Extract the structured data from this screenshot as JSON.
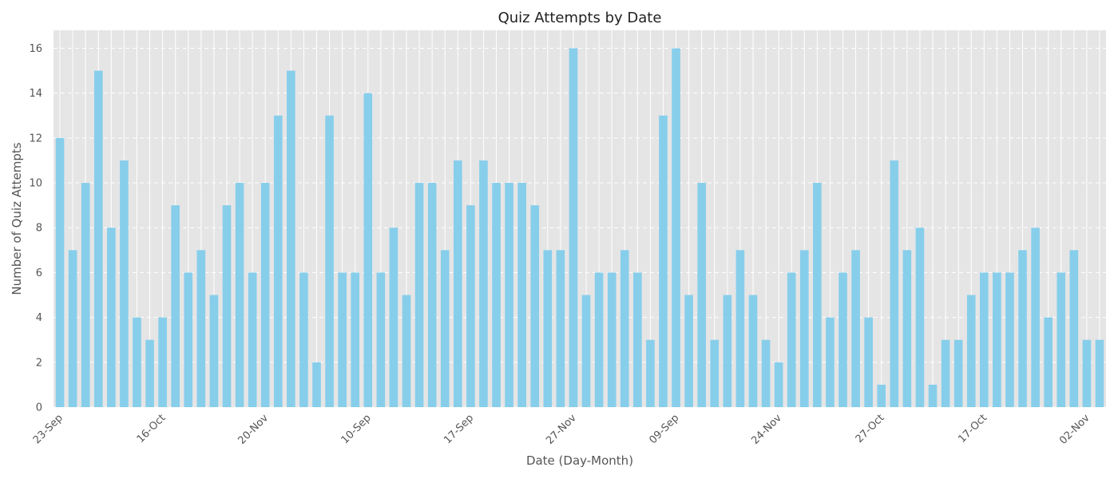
{
  "colors": {
    "plot_background": "#e5e5e5",
    "bar": "#87ceeb",
    "grid": "#ffffff",
    "text": "#555555"
  },
  "chart_data": {
    "type": "bar",
    "title": "Quiz Attempts by Date",
    "xlabel": "Date (Day-Month)",
    "ylabel": "Number of Quiz Attempts",
    "ylim": [
      0,
      16.8
    ],
    "yticks": [
      0,
      2,
      4,
      6,
      8,
      10,
      12,
      14,
      16
    ],
    "grid": true,
    "xtick_every": 8,
    "xtick_labels": [
      "23-Sep",
      "16-Oct",
      "20-Nov",
      "10-Sep",
      "17-Sep",
      "27-Nov",
      "09-Sep",
      "24-Nov",
      "27-Oct",
      "17-Oct",
      "02-Nov"
    ],
    "values": [
      12,
      7,
      10,
      15,
      8,
      11,
      4,
      3,
      4,
      9,
      6,
      7,
      5,
      9,
      10,
      6,
      10,
      13,
      15,
      6,
      2,
      13,
      6,
      6,
      14,
      6,
      8,
      5,
      10,
      10,
      7,
      11,
      9,
      11,
      10,
      10,
      10,
      9,
      7,
      7,
      16,
      5,
      6,
      6,
      7,
      6,
      3,
      13,
      16,
      5,
      10,
      3,
      5,
      7,
      5,
      3,
      2,
      6,
      7,
      10,
      4,
      6,
      7,
      4,
      1,
      11,
      7,
      8,
      1,
      3,
      3,
      5,
      6,
      6,
      6,
      7,
      8,
      4,
      6,
      7,
      3,
      3
    ]
  }
}
